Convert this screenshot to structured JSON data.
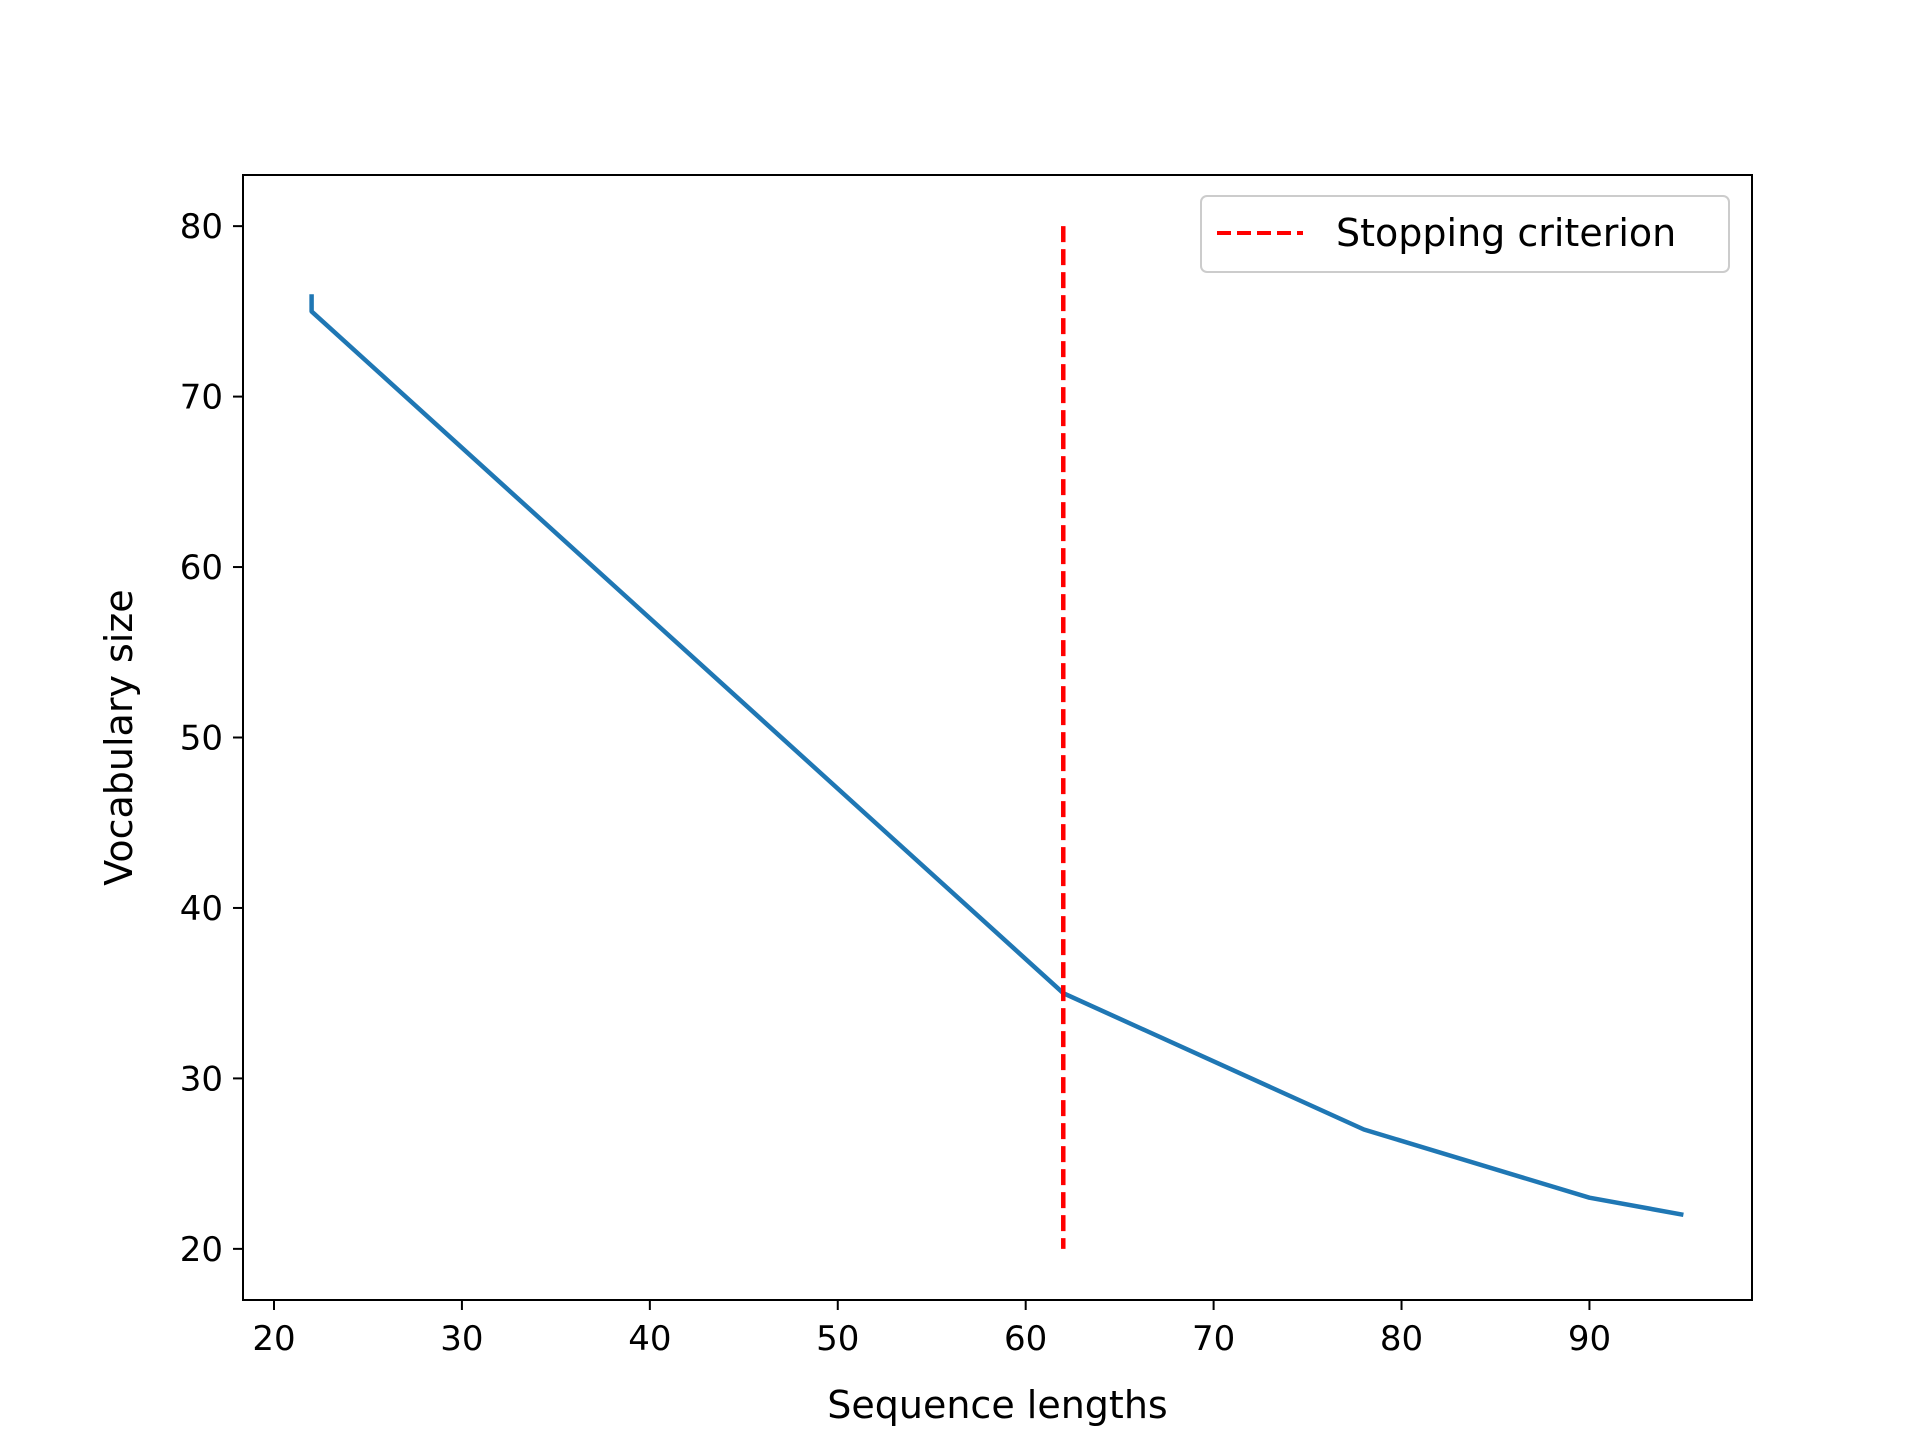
{
  "chart_data": {
    "type": "line",
    "title": "",
    "xlabel": "Sequence lengths",
    "ylabel": "Vocabulary size",
    "xlim": [
      18.35,
      98.65
    ],
    "ylim": [
      17,
      83
    ],
    "xticks": [
      20,
      30,
      40,
      50,
      60,
      70,
      80,
      90
    ],
    "yticks": [
      20,
      30,
      40,
      50,
      60,
      70,
      80
    ],
    "grid": false,
    "legend_position": "top-right",
    "series": [
      {
        "color": "#1f77b4",
        "style": "solid",
        "x": [
          22,
          22,
          62,
          78,
          90,
          95
        ],
        "y": [
          76,
          75,
          35,
          27,
          23,
          22
        ]
      }
    ],
    "vlines": [
      {
        "name": "Stopping criterion",
        "x": 62,
        "ymin": 20,
        "ymax": 80,
        "color": "#ff0000",
        "style": "dashed"
      }
    ]
  }
}
